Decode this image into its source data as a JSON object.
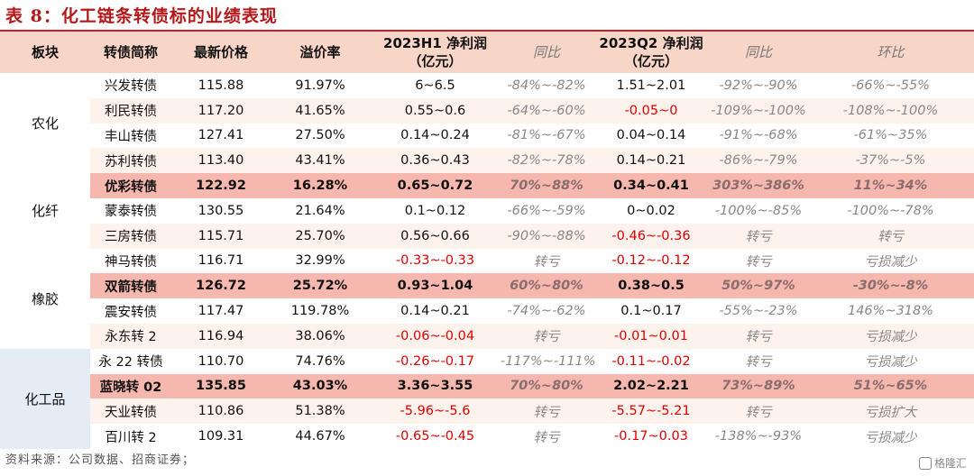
{
  "title": "表 8：化工链条转债标的业绩表现",
  "header": {
    "sector": "板块",
    "name": "转债简称",
    "price": "最新价格",
    "premium": "溢价率",
    "h1_line1": "2023H1 净利润",
    "h1_line2": "（亿元）",
    "h1_yoy": "同比",
    "q2_line1": "2023Q2 净利润",
    "q2_line2": "（亿元）",
    "q2_yoy": "同比",
    "q2_qoq": "环比"
  },
  "sectors": [
    "农化",
    "化纤",
    "橡胶",
    "化工品"
  ],
  "rows": [
    {
      "name": "兴发转债",
      "price": "115.88",
      "premium": "91.97%",
      "h1": "6~6.5",
      "h1_yoy": "-84%~-82%",
      "q2": "1.51~2.01",
      "q2_yoy": "-92%~-90%",
      "q2_qoq": "-66%~-55%"
    },
    {
      "name": "利民转债",
      "price": "117.20",
      "premium": "41.65%",
      "h1": "0.55~0.6",
      "h1_yoy": "-64%~-60%",
      "q2": "-0.05~0",
      "q2_yoy": "-109%~-100%",
      "q2_qoq": "-108%~-100%"
    },
    {
      "name": "丰山转债",
      "price": "127.41",
      "premium": "27.50%",
      "h1": "0.14~0.24",
      "h1_yoy": "-81%~-67%",
      "q2": "0.04~0.14",
      "q2_yoy": "-91%~-68%",
      "q2_qoq": "-61%~35%"
    },
    {
      "name": "苏利转债",
      "price": "113.40",
      "premium": "43.41%",
      "h1": "0.36~0.43",
      "h1_yoy": "-82%~-78%",
      "q2": "0.14~0.21",
      "q2_yoy": "-86%~-79%",
      "q2_qoq": "-37%~-5%"
    },
    {
      "name": "优彩转债",
      "price": "122.92",
      "premium": "16.28%",
      "h1": "0.65~0.72",
      "h1_yoy": "70%~88%",
      "q2": "0.34~0.41",
      "q2_yoy": "303%~386%",
      "q2_qoq": "11%~34%"
    },
    {
      "name": "蒙泰转债",
      "price": "130.55",
      "premium": "21.64%",
      "h1": "0.1~0.12",
      "h1_yoy": "-66%~-59%",
      "q2": "0~0.02",
      "q2_yoy": "-100%~-85%",
      "q2_qoq": "-100%~-78%"
    },
    {
      "name": "三房转债",
      "price": "115.71",
      "premium": "25.70%",
      "h1": "0.56~0.66",
      "h1_yoy": "-90%~-88%",
      "q2": "-0.46~-0.36",
      "q2_yoy": "转亏",
      "q2_qoq": "转亏"
    },
    {
      "name": "神马转债",
      "price": "116.71",
      "premium": "32.99%",
      "h1": "-0.33~-0.33",
      "h1_yoy": "转亏",
      "q2": "-0.12~-0.12",
      "q2_yoy": "转亏",
      "q2_qoq": "亏损减少"
    },
    {
      "name": "双箭转债",
      "price": "126.72",
      "premium": "25.72%",
      "h1": "0.93~1.04",
      "h1_yoy": "60%~80%",
      "q2": "0.38~0.5",
      "q2_yoy": "50%~97%",
      "q2_qoq": "-30%~-8%"
    },
    {
      "name": "震安转债",
      "price": "117.47",
      "premium": "119.78%",
      "h1": "0.14~0.21",
      "h1_yoy": "-74%~-62%",
      "q2": "0.1~0.17",
      "q2_yoy": "-55%~-23%",
      "q2_qoq": "146%~318%"
    },
    {
      "name": "永东转 2",
      "price": "116.94",
      "premium": "38.06%",
      "h1": "-0.06~-0.04",
      "h1_yoy": "转亏",
      "q2": "-0.01~0.01",
      "q2_yoy": "转亏",
      "q2_qoq": "亏损减少"
    },
    {
      "name": "永 22 转债",
      "price": "110.70",
      "premium": "74.76%",
      "h1": "-0.26~-0.17",
      "h1_yoy": "-117%~-111%",
      "q2": "-0.11~-0.02",
      "q2_yoy": "转亏",
      "q2_qoq": "亏损减少"
    },
    {
      "name": "蓝晓转 02",
      "price": "135.85",
      "premium": "43.03%",
      "h1": "3.36~3.55",
      "h1_yoy": "70%~80%",
      "q2": "2.02~2.21",
      "q2_yoy": "73%~89%",
      "q2_qoq": "51%~65%"
    },
    {
      "name": "天业转债",
      "price": "110.86",
      "premium": "51.38%",
      "h1": "-5.96~-5.6",
      "h1_yoy": "转亏",
      "q2": "-5.57~-5.21",
      "q2_yoy": "转亏",
      "q2_qoq": "亏损扩大"
    },
    {
      "name": "百川转 2",
      "price": "109.31",
      "premium": "44.67%",
      "h1": "-0.65~-0.45",
      "h1_yoy": "转亏",
      "q2": "-0.17~0.03",
      "q2_yoy": "-138%~-93%",
      "q2_qoq": "亏损减少"
    }
  ],
  "source": "资料来源：公司数据、招商证券；",
  "watermark": "格隆汇"
}
